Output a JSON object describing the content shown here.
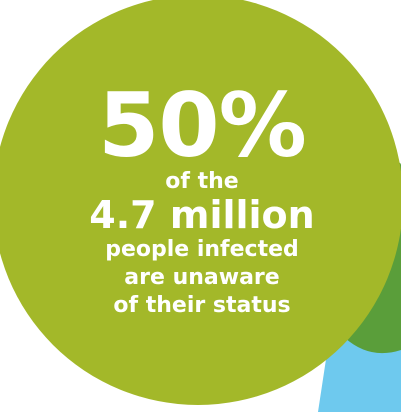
{
  "stat": {
    "percent": "50%",
    "line_of_the": "of the",
    "line_million": "4.7 million",
    "line_people": "people infected",
    "line_unaware": "are unaware",
    "line_status": "of their status"
  },
  "colors": {
    "circle": "#a3b829",
    "dark_green_shape": "#5a9e3a",
    "light_blue_shape": "#6ec9ee",
    "text": "#ffffff"
  }
}
